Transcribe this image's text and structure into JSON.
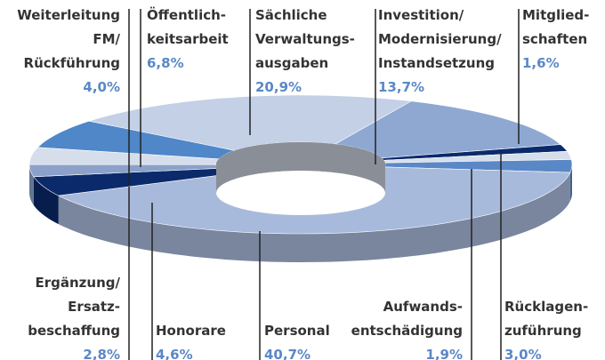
{
  "chart_data": {
    "type": "pie",
    "donut": true,
    "categories": [
      [
        "Investition/",
        "Modernisierung/",
        "Instandsetzung"
      ],
      [
        "Mitglied-",
        "schaften"
      ],
      [
        "Aufwands-",
        "entschädigung"
      ],
      [
        "Rücklagen-",
        "zuführung"
      ],
      [
        "Personal"
      ],
      [
        "Honorare"
      ],
      [
        "Ergänzung/",
        "Ersatz-",
        "beschaffung"
      ],
      [
        "Weiterleitung",
        "FM/",
        "Rückführung"
      ],
      [
        "Öffentlich-",
        "keitsarbeit"
      ],
      [
        "Sächliche",
        "Verwaltungs-",
        "ausgaben"
      ]
    ],
    "values": [
      13.7,
      1.6,
      1.9,
      3.0,
      40.7,
      4.6,
      2.8,
      4.0,
      6.8,
      20.9
    ],
    "value_labels": [
      "13,7%",
      "1,6%",
      "1,9%",
      "3,0%",
      "40,7%",
      "4,6%",
      "2,8%",
      "4,0%",
      "6,8%",
      "20,9%"
    ],
    "colors": [
      "#8ea8d2",
      "#0b2a6b",
      "#d6deec",
      "#5a88c6",
      "#a8badb",
      "#0b2a6b",
      "#8ba1c9",
      "#d6deec",
      "#4f87c8",
      "#c4d0e6"
    ]
  }
}
